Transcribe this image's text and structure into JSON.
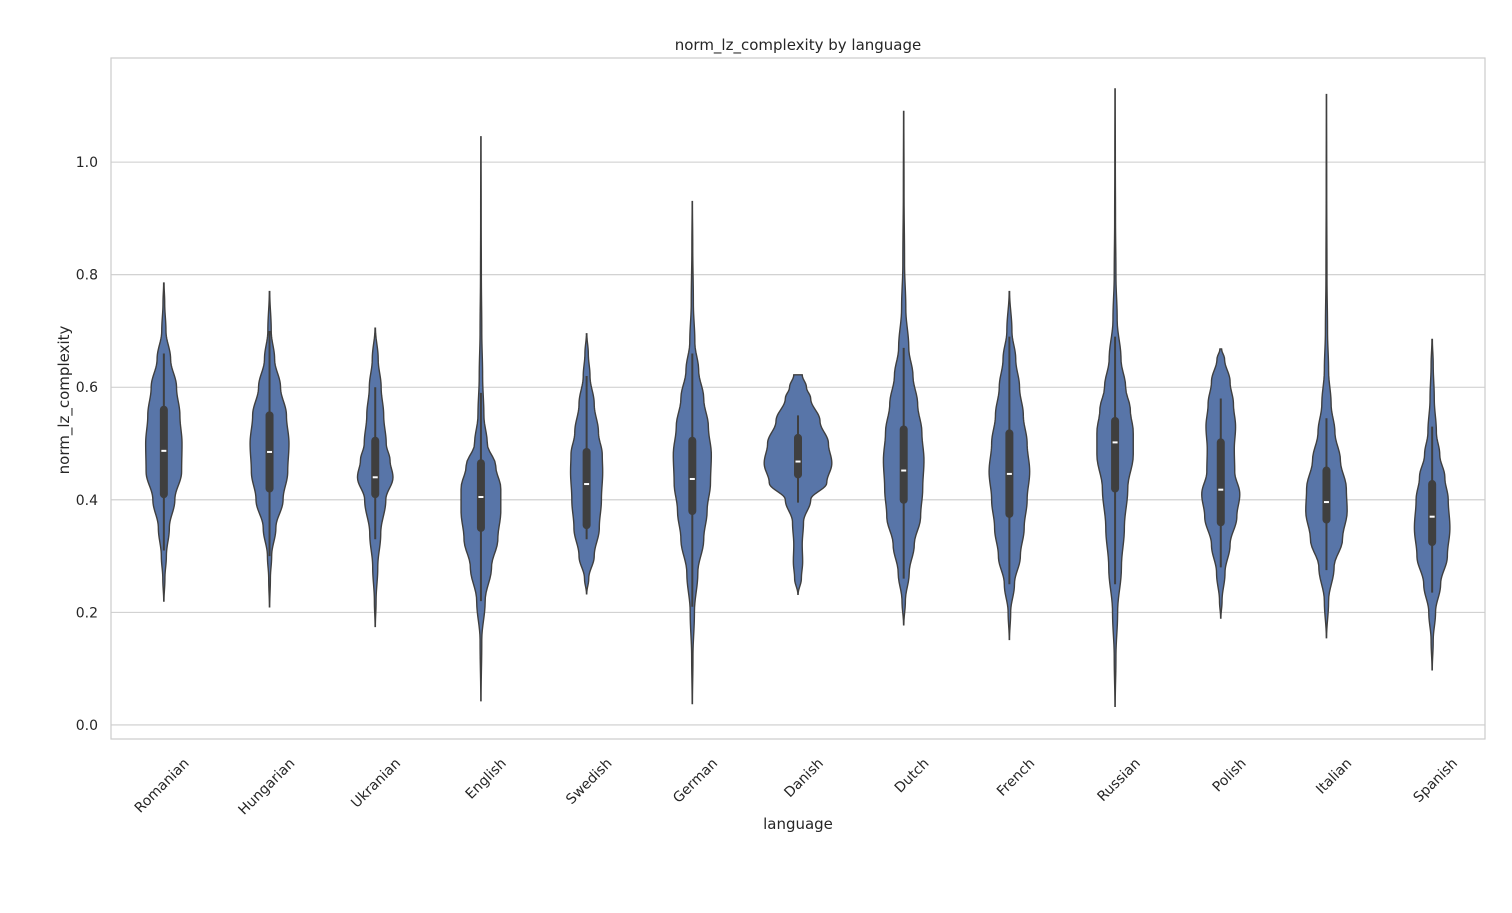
{
  "colors": {
    "violin_fill": "#5875a8",
    "violin_stroke": "#3f3f3f",
    "box": "#3f3f3f",
    "median": "#ffffff",
    "grid": "#cccccc",
    "frame": "#cccccc",
    "text": "#262626"
  },
  "chart_data": {
    "type": "violin",
    "title": "norm_lz_complexity by language",
    "xlabel": "language",
    "ylabel": "norm_lz_complexity",
    "ylim": [
      -0.025,
      1.185
    ],
    "yticks": [
      0.0,
      0.2,
      0.4,
      0.6,
      0.8,
      1.0
    ],
    "ytick_labels": [
      "0.0",
      "0.2",
      "0.4",
      "0.6",
      "0.8",
      "1.0"
    ],
    "grid": true,
    "categories": [
      "Romanian",
      "Hungarian",
      "Ukranian",
      "English",
      "Swedish",
      "German",
      "Danish",
      "Dutch",
      "French",
      "Russian",
      "Polish",
      "Italian",
      "Spanish"
    ],
    "violins": [
      {
        "language": "Romanian",
        "min": 0.22,
        "max": 0.785,
        "q1": 0.41,
        "median": 0.487,
        "q3": 0.56,
        "whisker_low": 0.31,
        "whisker_high": 0.66,
        "density": [
          [
            0.22,
            0.003
          ],
          [
            0.26,
            0.025
          ],
          [
            0.3,
            0.06
          ],
          [
            0.35,
            0.13
          ],
          [
            0.4,
            0.26
          ],
          [
            0.45,
            0.42
          ],
          [
            0.5,
            0.43
          ],
          [
            0.55,
            0.38
          ],
          [
            0.6,
            0.3
          ],
          [
            0.65,
            0.16
          ],
          [
            0.7,
            0.05
          ],
          [
            0.75,
            0.02
          ],
          [
            0.785,
            0.005
          ]
        ]
      },
      {
        "language": "Hungarian",
        "min": 0.21,
        "max": 0.77,
        "q1": 0.42,
        "median": 0.485,
        "q3": 0.55,
        "whisker_low": 0.3,
        "whisker_high": 0.7,
        "density": [
          [
            0.21,
            0.003
          ],
          [
            0.26,
            0.02
          ],
          [
            0.3,
            0.05
          ],
          [
            0.35,
            0.15
          ],
          [
            0.4,
            0.32
          ],
          [
            0.45,
            0.43
          ],
          [
            0.5,
            0.46
          ],
          [
            0.55,
            0.4
          ],
          [
            0.6,
            0.26
          ],
          [
            0.65,
            0.12
          ],
          [
            0.7,
            0.04
          ],
          [
            0.77,
            0.005
          ]
        ]
      },
      {
        "language": "Ukranian",
        "min": 0.175,
        "max": 0.705,
        "q1": 0.41,
        "median": 0.44,
        "q3": 0.505,
        "whisker_low": 0.33,
        "whisker_high": 0.6,
        "density": [
          [
            0.175,
            0.003
          ],
          [
            0.22,
            0.02
          ],
          [
            0.28,
            0.06
          ],
          [
            0.34,
            0.13
          ],
          [
            0.4,
            0.25
          ],
          [
            0.44,
            0.42
          ],
          [
            0.47,
            0.35
          ],
          [
            0.5,
            0.26
          ],
          [
            0.55,
            0.2
          ],
          [
            0.6,
            0.14
          ],
          [
            0.65,
            0.07
          ],
          [
            0.705,
            0.005
          ]
        ]
      },
      {
        "language": "English",
        "min": 0.043,
        "max": 1.045,
        "q1": 0.35,
        "median": 0.405,
        "q3": 0.465,
        "whisker_low": 0.22,
        "whisker_high": 0.59,
        "density": [
          [
            0.043,
            0.003
          ],
          [
            0.15,
            0.02
          ],
          [
            0.22,
            0.1
          ],
          [
            0.28,
            0.25
          ],
          [
            0.33,
            0.4
          ],
          [
            0.38,
            0.47
          ],
          [
            0.42,
            0.47
          ],
          [
            0.46,
            0.35
          ],
          [
            0.5,
            0.15
          ],
          [
            0.55,
            0.07
          ],
          [
            0.62,
            0.04
          ],
          [
            0.7,
            0.02
          ],
          [
            0.8,
            0.01
          ],
          [
            0.9,
            0.006
          ],
          [
            1.045,
            0.003
          ]
        ]
      },
      {
        "language": "Swedish",
        "min": 0.233,
        "max": 0.695,
        "q1": 0.355,
        "median": 0.428,
        "q3": 0.485,
        "whisker_low": 0.33,
        "whisker_high": 0.62,
        "density": [
          [
            0.233,
            0.003
          ],
          [
            0.26,
            0.05
          ],
          [
            0.3,
            0.18
          ],
          [
            0.35,
            0.3
          ],
          [
            0.4,
            0.35
          ],
          [
            0.45,
            0.38
          ],
          [
            0.48,
            0.37
          ],
          [
            0.52,
            0.28
          ],
          [
            0.57,
            0.18
          ],
          [
            0.62,
            0.08
          ],
          [
            0.66,
            0.04
          ],
          [
            0.695,
            0.005
          ]
        ]
      },
      {
        "language": "German",
        "min": 0.038,
        "max": 0.93,
        "q1": 0.38,
        "median": 0.437,
        "q3": 0.505,
        "whisker_low": 0.21,
        "whisker_high": 0.66,
        "density": [
          [
            0.038,
            0.003
          ],
          [
            0.12,
            0.015
          ],
          [
            0.2,
            0.05
          ],
          [
            0.27,
            0.13
          ],
          [
            0.33,
            0.27
          ],
          [
            0.38,
            0.35
          ],
          [
            0.43,
            0.43
          ],
          [
            0.48,
            0.45
          ],
          [
            0.53,
            0.38
          ],
          [
            0.58,
            0.27
          ],
          [
            0.63,
            0.15
          ],
          [
            0.68,
            0.06
          ],
          [
            0.75,
            0.025
          ],
          [
            0.85,
            0.01
          ],
          [
            0.93,
            0.003
          ]
        ]
      },
      {
        "language": "Danish",
        "min": 0.232,
        "max": 0.622,
        "q1": 0.445,
        "median": 0.468,
        "q3": 0.51,
        "whisker_low": 0.395,
        "whisker_high": 0.55,
        "density": [
          [
            0.232,
            0.003
          ],
          [
            0.26,
            0.08
          ],
          [
            0.29,
            0.11
          ],
          [
            0.32,
            0.1
          ],
          [
            0.36,
            0.13
          ],
          [
            0.4,
            0.3
          ],
          [
            0.43,
            0.68
          ],
          [
            0.465,
            0.8
          ],
          [
            0.5,
            0.72
          ],
          [
            0.54,
            0.52
          ],
          [
            0.58,
            0.3
          ],
          [
            0.6,
            0.2
          ],
          [
            0.622,
            0.1
          ]
        ]
      },
      {
        "language": "Dutch",
        "min": 0.178,
        "max": 1.09,
        "q1": 0.4,
        "median": 0.452,
        "q3": 0.525,
        "whisker_low": 0.26,
        "whisker_high": 0.67,
        "density": [
          [
            0.178,
            0.003
          ],
          [
            0.22,
            0.04
          ],
          [
            0.27,
            0.13
          ],
          [
            0.32,
            0.25
          ],
          [
            0.37,
            0.4
          ],
          [
            0.42,
            0.45
          ],
          [
            0.47,
            0.48
          ],
          [
            0.52,
            0.43
          ],
          [
            0.57,
            0.33
          ],
          [
            0.62,
            0.22
          ],
          [
            0.67,
            0.12
          ],
          [
            0.74,
            0.05
          ],
          [
            0.82,
            0.02
          ],
          [
            0.95,
            0.008
          ],
          [
            1.09,
            0.003
          ]
        ]
      },
      {
        "language": "French",
        "min": 0.152,
        "max": 0.77,
        "q1": 0.375,
        "median": 0.446,
        "q3": 0.518,
        "whisker_low": 0.25,
        "whisker_high": 0.69,
        "density": [
          [
            0.152,
            0.003
          ],
          [
            0.2,
            0.03
          ],
          [
            0.25,
            0.12
          ],
          [
            0.3,
            0.26
          ],
          [
            0.35,
            0.35
          ],
          [
            0.4,
            0.42
          ],
          [
            0.45,
            0.48
          ],
          [
            0.5,
            0.42
          ],
          [
            0.55,
            0.33
          ],
          [
            0.6,
            0.24
          ],
          [
            0.65,
            0.15
          ],
          [
            0.7,
            0.06
          ],
          [
            0.77,
            0.005
          ]
        ]
      },
      {
        "language": "Russian",
        "min": 0.033,
        "max": 1.13,
        "q1": 0.42,
        "median": 0.502,
        "q3": 0.54,
        "whisker_low": 0.25,
        "whisker_high": 0.69,
        "density": [
          [
            0.033,
            0.003
          ],
          [
            0.12,
            0.02
          ],
          [
            0.2,
            0.06
          ],
          [
            0.28,
            0.15
          ],
          [
            0.35,
            0.22
          ],
          [
            0.42,
            0.3
          ],
          [
            0.48,
            0.43
          ],
          [
            0.52,
            0.43
          ],
          [
            0.56,
            0.36
          ],
          [
            0.6,
            0.25
          ],
          [
            0.65,
            0.14
          ],
          [
            0.72,
            0.05
          ],
          [
            0.8,
            0.02
          ],
          [
            0.9,
            0.01
          ],
          [
            1.0,
            0.006
          ],
          [
            1.13,
            0.003
          ]
        ]
      },
      {
        "language": "Polish",
        "min": 0.19,
        "max": 0.668,
        "q1": 0.36,
        "median": 0.418,
        "q3": 0.502,
        "whisker_low": 0.28,
        "whisker_high": 0.58,
        "density": [
          [
            0.19,
            0.003
          ],
          [
            0.22,
            0.03
          ],
          [
            0.27,
            0.1
          ],
          [
            0.32,
            0.22
          ],
          [
            0.37,
            0.38
          ],
          [
            0.41,
            0.45
          ],
          [
            0.45,
            0.33
          ],
          [
            0.49,
            0.32
          ],
          [
            0.53,
            0.35
          ],
          [
            0.57,
            0.3
          ],
          [
            0.61,
            0.22
          ],
          [
            0.65,
            0.09
          ],
          [
            0.668,
            0.02
          ]
        ]
      },
      {
        "language": "Italian",
        "min": 0.155,
        "max": 1.12,
        "q1": 0.365,
        "median": 0.396,
        "q3": 0.452,
        "whisker_low": 0.275,
        "whisker_high": 0.545,
        "density": [
          [
            0.155,
            0.003
          ],
          [
            0.22,
            0.05
          ],
          [
            0.28,
            0.18
          ],
          [
            0.33,
            0.38
          ],
          [
            0.38,
            0.49
          ],
          [
            0.42,
            0.47
          ],
          [
            0.47,
            0.33
          ],
          [
            0.52,
            0.2
          ],
          [
            0.57,
            0.11
          ],
          [
            0.63,
            0.05
          ],
          [
            0.7,
            0.025
          ],
          [
            0.8,
            0.012
          ],
          [
            0.95,
            0.006
          ],
          [
            1.12,
            0.003
          ]
        ]
      },
      {
        "language": "Spanish",
        "min": 0.098,
        "max": 0.685,
        "q1": 0.325,
        "median": 0.37,
        "q3": 0.428,
        "whisker_low": 0.235,
        "whisker_high": 0.53,
        "density": [
          [
            0.098,
            0.003
          ],
          [
            0.15,
            0.025
          ],
          [
            0.2,
            0.08
          ],
          [
            0.25,
            0.2
          ],
          [
            0.3,
            0.36
          ],
          [
            0.35,
            0.42
          ],
          [
            0.4,
            0.38
          ],
          [
            0.44,
            0.3
          ],
          [
            0.48,
            0.18
          ],
          [
            0.52,
            0.1
          ],
          [
            0.58,
            0.05
          ],
          [
            0.64,
            0.025
          ],
          [
            0.685,
            0.005
          ]
        ]
      }
    ]
  }
}
